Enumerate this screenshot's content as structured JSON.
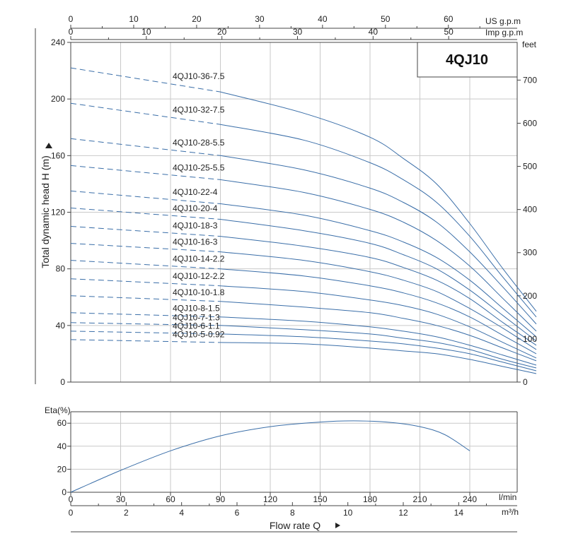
{
  "chart_data": [
    {
      "type": "line",
      "title": "4QJ10",
      "ylabel": "Total dynamic head H (m)",
      "ylim": [
        0,
        240
      ],
      "yticks": [
        0,
        40,
        80,
        120,
        160,
        200,
        240
      ],
      "right_axis": {
        "unit": "feet",
        "ticks": [
          0,
          100,
          200,
          300,
          400,
          500,
          600,
          700
        ]
      },
      "top_axis_us": {
        "unit": "US g.p.m",
        "ticks": [
          0,
          10,
          20,
          30,
          40,
          50,
          60
        ]
      },
      "top_axis_imp": {
        "unit": "Imp g.p.m",
        "ticks": [
          0,
          10,
          20,
          30,
          40,
          50
        ]
      },
      "xlabel": "",
      "xlim": [
        0,
        260
      ],
      "grid": true,
      "series": [
        {
          "name": "4QJ10-36-7.5",
          "dashed_to": 90,
          "points": [
            [
              0,
              222
            ],
            [
              90,
              205
            ],
            [
              140,
              190
            ],
            [
              180,
              173
            ],
            [
              200,
              158
            ],
            [
              220,
              140
            ],
            [
              240,
              112
            ],
            [
              260,
              80
            ],
            [
              280,
              50
            ]
          ]
        },
        {
          "name": "4QJ10-32-7.5",
          "dashed_to": 90,
          "points": [
            [
              0,
              197
            ],
            [
              90,
              182
            ],
            [
              140,
              171
            ],
            [
              180,
              155
            ],
            [
              200,
              143
            ],
            [
              220,
              127
            ],
            [
              240,
              103
            ],
            [
              260,
              74
            ],
            [
              280,
              46
            ]
          ]
        },
        {
          "name": "4QJ10-28-5.5",
          "dashed_to": 90,
          "points": [
            [
              0,
              172
            ],
            [
              90,
              160
            ],
            [
              140,
              150
            ],
            [
              180,
              137
            ],
            [
              200,
              127
            ],
            [
              220,
              113
            ],
            [
              240,
              92
            ],
            [
              260,
              67
            ],
            [
              280,
              41
            ]
          ]
        },
        {
          "name": "4QJ10-25-5.5",
          "dashed_to": 90,
          "points": [
            [
              0,
              153
            ],
            [
              90,
              143
            ],
            [
              140,
              134
            ],
            [
              180,
              122
            ],
            [
              200,
              113
            ],
            [
              220,
              100
            ],
            [
              240,
              82
            ],
            [
              260,
              59
            ],
            [
              280,
              36
            ]
          ]
        },
        {
          "name": "4QJ10-22-4",
          "dashed_to": 90,
          "points": [
            [
              0,
              135
            ],
            [
              90,
              126
            ],
            [
              140,
              118
            ],
            [
              180,
              107
            ],
            [
              200,
              99
            ],
            [
              220,
              88
            ],
            [
              240,
              72
            ],
            [
              260,
              52
            ],
            [
              280,
              32
            ]
          ]
        },
        {
          "name": "4QJ10-20-4",
          "dashed_to": 90,
          "points": [
            [
              0,
              123
            ],
            [
              90,
              115
            ],
            [
              140,
              107
            ],
            [
              180,
              98
            ],
            [
              200,
              90
            ],
            [
              220,
              80
            ],
            [
              240,
              65
            ],
            [
              260,
              47
            ],
            [
              280,
              29
            ]
          ]
        },
        {
          "name": "4QJ10-18-3",
          "dashed_to": 90,
          "points": [
            [
              0,
              110
            ],
            [
              90,
              103
            ],
            [
              140,
              96
            ],
            [
              180,
              88
            ],
            [
              200,
              81
            ],
            [
              220,
              72
            ],
            [
              240,
              59
            ],
            [
              260,
              42
            ],
            [
              280,
              26
            ]
          ]
        },
        {
          "name": "4QJ10-16-3",
          "dashed_to": 90,
          "points": [
            [
              0,
              98
            ],
            [
              90,
              92
            ],
            [
              140,
              86
            ],
            [
              180,
              78
            ],
            [
              200,
              72
            ],
            [
              220,
              64
            ],
            [
              240,
              52
            ],
            [
              260,
              38
            ],
            [
              280,
              23
            ]
          ]
        },
        {
          "name": "4QJ10-14-2.2",
          "dashed_to": 90,
          "points": [
            [
              0,
              86
            ],
            [
              90,
              80
            ],
            [
              140,
              75
            ],
            [
              180,
              68
            ],
            [
              200,
              63
            ],
            [
              220,
              56
            ],
            [
              240,
              46
            ],
            [
              260,
              33
            ],
            [
              280,
              20
            ]
          ]
        },
        {
          "name": "4QJ10-12-2.2",
          "dashed_to": 90,
          "points": [
            [
              0,
              73
            ],
            [
              90,
              68
            ],
            [
              140,
              64
            ],
            [
              180,
              58
            ],
            [
              200,
              54
            ],
            [
              220,
              48
            ],
            [
              240,
              39
            ],
            [
              260,
              28
            ],
            [
              280,
              17
            ]
          ]
        },
        {
          "name": "4QJ10-10-1.8",
          "dashed_to": 90,
          "points": [
            [
              0,
              61
            ],
            [
              90,
              57
            ],
            [
              140,
              53
            ],
            [
              180,
              49
            ],
            [
              200,
              45
            ],
            [
              220,
              40
            ],
            [
              240,
              33
            ],
            [
              260,
              24
            ],
            [
              280,
              15
            ]
          ]
        },
        {
          "name": "4QJ10-8-1.5",
          "dashed_to": 90,
          "points": [
            [
              0,
              49
            ],
            [
              90,
              46
            ],
            [
              140,
              43
            ],
            [
              180,
              39
            ],
            [
              200,
              36
            ],
            [
              220,
              32
            ],
            [
              240,
              26
            ],
            [
              260,
              19
            ],
            [
              280,
              12
            ]
          ]
        },
        {
          "name": "4QJ10-7-1.3",
          "dashed_to": 90,
          "points": [
            [
              0,
              42
            ],
            [
              90,
              40
            ],
            [
              140,
              37
            ],
            [
              180,
              34
            ],
            [
              200,
              31
            ],
            [
              220,
              28
            ],
            [
              240,
              23
            ],
            [
              260,
              16
            ],
            [
              280,
              10
            ]
          ]
        },
        {
          "name": "4QJ10-6-1.1",
          "dashed_to": 90,
          "points": [
            [
              0,
              36
            ],
            [
              90,
              34
            ],
            [
              140,
              32
            ],
            [
              180,
              29
            ],
            [
              200,
              27
            ],
            [
              220,
              24
            ],
            [
              240,
              20
            ],
            [
              260,
              14
            ],
            [
              280,
              8
            ]
          ]
        },
        {
          "name": "4QJ10-5-0.92",
          "dashed_to": 90,
          "points": [
            [
              0,
              30
            ],
            [
              90,
              28
            ],
            [
              140,
              27
            ],
            [
              180,
              24
            ],
            [
              200,
              22
            ],
            [
              220,
              20
            ],
            [
              240,
              16
            ],
            [
              260,
              11
            ],
            [
              280,
              6
            ]
          ]
        }
      ]
    },
    {
      "type": "line",
      "ylabel": "Eta(%)",
      "ylim": [
        0,
        70
      ],
      "yticks": [
        0,
        20,
        40,
        60
      ],
      "xlabel": "Flow rate Q",
      "x_lmin": {
        "unit": "l/min",
        "ticks": [
          0,
          30,
          60,
          90,
          120,
          150,
          180,
          210,
          240
        ]
      },
      "x_m3h": {
        "unit": "m³/h",
        "ticks": [
          0,
          2,
          4,
          6,
          8,
          10,
          12,
          14
        ]
      },
      "xlim": [
        0,
        280
      ],
      "grid": true,
      "series": [
        {
          "points": [
            [
              0,
              0
            ],
            [
              30,
              19
            ],
            [
              60,
              36
            ],
            [
              90,
              49
            ],
            [
              120,
              57
            ],
            [
              150,
              61
            ],
            [
              170,
              62
            ],
            [
              190,
              61
            ],
            [
              210,
              57
            ],
            [
              225,
              50
            ],
            [
              240,
              36
            ]
          ]
        }
      ]
    }
  ]
}
